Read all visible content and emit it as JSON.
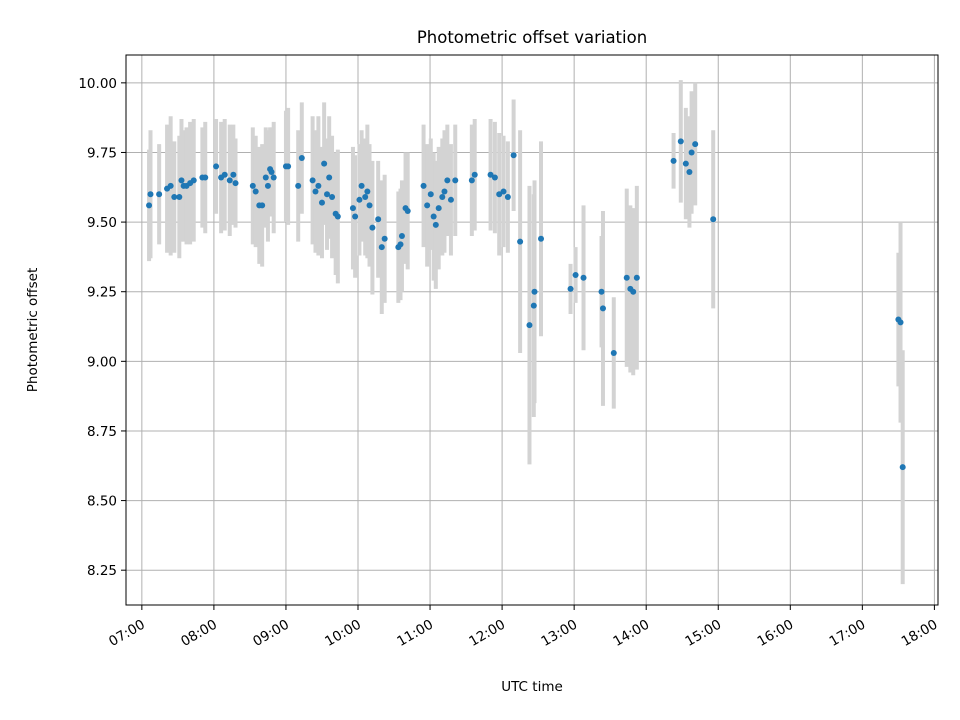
{
  "chart_data": {
    "type": "scatter",
    "title": "Photometric offset variation",
    "xlabel": "UTC time",
    "ylabel": "Photometric offset",
    "x_unit": "UTC hours",
    "xlim": [
      6.78,
      18.05
    ],
    "ylim": [
      8.125,
      10.1
    ],
    "grid": true,
    "x_ticks": [
      {
        "value": 7,
        "label": "07:00"
      },
      {
        "value": 8,
        "label": "08:00"
      },
      {
        "value": 9,
        "label": "09:00"
      },
      {
        "value": 10,
        "label": "10:00"
      },
      {
        "value": 11,
        "label": "11:00"
      },
      {
        "value": 12,
        "label": "12:00"
      },
      {
        "value": 13,
        "label": "13:00"
      },
      {
        "value": 14,
        "label": "14:00"
      },
      {
        "value": 15,
        "label": "15:00"
      },
      {
        "value": 16,
        "label": "16:00"
      },
      {
        "value": 17,
        "label": "17:00"
      },
      {
        "value": 18,
        "label": "18:00"
      }
    ],
    "y_ticks": [
      {
        "value": 8.25,
        "label": "8.25"
      },
      {
        "value": 8.5,
        "label": "8.50"
      },
      {
        "value": 8.75,
        "label": "8.75"
      },
      {
        "value": 9.0,
        "label": "9.00"
      },
      {
        "value": 9.25,
        "label": "9.25"
      },
      {
        "value": 9.5,
        "label": "9.50"
      },
      {
        "value": 9.75,
        "label": "9.75"
      },
      {
        "value": 10.0,
        "label": "10.00"
      }
    ],
    "marker_color": "#1f77b4",
    "errorbar_color": "#d3d3d3",
    "points": [
      [
        7.1,
        9.56,
        0.2
      ],
      [
        7.12,
        9.6,
        0.23
      ],
      [
        7.24,
        9.6,
        0.18
      ],
      [
        7.35,
        9.62,
        0.23
      ],
      [
        7.4,
        9.63,
        0.25
      ],
      [
        7.45,
        9.59,
        0.2
      ],
      [
        7.52,
        9.59,
        0.22
      ],
      [
        7.55,
        9.65,
        0.22
      ],
      [
        7.58,
        9.63,
        0.2
      ],
      [
        7.62,
        9.63,
        0.21
      ],
      [
        7.67,
        9.64,
        0.22
      ],
      [
        7.72,
        9.65,
        0.22
      ],
      [
        7.84,
        9.66,
        0.18
      ],
      [
        7.88,
        9.66,
        0.2
      ],
      [
        8.03,
        9.7,
        0.17
      ],
      [
        8.1,
        9.66,
        0.2
      ],
      [
        8.15,
        9.67,
        0.2
      ],
      [
        8.22,
        9.65,
        0.2
      ],
      [
        8.27,
        9.67,
        0.18
      ],
      [
        8.3,
        9.64,
        0.16
      ],
      [
        8.54,
        9.63,
        0.21
      ],
      [
        8.58,
        9.61,
        0.2
      ],
      [
        8.63,
        9.56,
        0.21
      ],
      [
        8.67,
        9.56,
        0.22
      ],
      [
        8.72,
        9.66,
        0.18
      ],
      [
        8.75,
        9.63,
        0.2
      ],
      [
        8.78,
        9.69,
        0.15
      ],
      [
        8.8,
        9.68,
        0.16
      ],
      [
        8.83,
        9.66,
        0.2
      ],
      [
        9.0,
        9.7,
        0.2
      ],
      [
        9.03,
        9.7,
        0.21
      ],
      [
        9.17,
        9.63,
        0.2
      ],
      [
        9.22,
        9.73,
        0.2
      ],
      [
        9.37,
        9.65,
        0.23
      ],
      [
        9.41,
        9.61,
        0.22
      ],
      [
        9.45,
        9.63,
        0.25
      ],
      [
        9.5,
        9.57,
        0.2
      ],
      [
        9.53,
        9.71,
        0.22
      ],
      [
        9.57,
        9.6,
        0.2
      ],
      [
        9.6,
        9.66,
        0.22
      ],
      [
        9.64,
        9.59,
        0.22
      ],
      [
        9.69,
        9.53,
        0.22
      ],
      [
        9.72,
        9.52,
        0.24
      ],
      [
        9.93,
        9.55,
        0.22
      ],
      [
        9.96,
        9.52,
        0.22
      ],
      [
        10.02,
        9.58,
        0.2
      ],
      [
        10.05,
        9.63,
        0.2
      ],
      [
        10.1,
        9.59,
        0.21
      ],
      [
        10.13,
        9.61,
        0.24
      ],
      [
        10.16,
        9.56,
        0.22
      ],
      [
        10.2,
        9.48,
        0.24
      ],
      [
        10.28,
        9.51,
        0.21
      ],
      [
        10.33,
        9.41,
        0.24
      ],
      [
        10.37,
        9.44,
        0.23
      ],
      [
        10.56,
        9.41,
        0.2
      ],
      [
        10.59,
        9.42,
        0.2
      ],
      [
        10.61,
        9.45,
        0.2
      ],
      [
        10.66,
        9.55,
        0.2
      ],
      [
        10.69,
        9.54,
        0.21
      ],
      [
        10.91,
        9.63,
        0.22
      ],
      [
        10.96,
        9.56,
        0.22
      ],
      [
        11.01,
        9.6,
        0.2
      ],
      [
        11.05,
        9.52,
        0.23
      ],
      [
        11.08,
        9.49,
        0.23
      ],
      [
        11.12,
        9.55,
        0.22
      ],
      [
        11.17,
        9.59,
        0.21
      ],
      [
        11.2,
        9.61,
        0.22
      ],
      [
        11.24,
        9.65,
        0.2
      ],
      [
        11.29,
        9.58,
        0.2
      ],
      [
        11.35,
        9.65,
        0.2
      ],
      [
        11.58,
        9.65,
        0.2
      ],
      [
        11.62,
        9.67,
        0.2
      ],
      [
        11.84,
        9.67,
        0.2
      ],
      [
        11.9,
        9.66,
        0.2
      ],
      [
        11.96,
        9.6,
        0.22
      ],
      [
        12.02,
        9.61,
        0.2
      ],
      [
        12.08,
        9.59,
        0.2
      ],
      [
        12.16,
        9.74,
        0.2
      ],
      [
        12.25,
        9.43,
        0.4
      ],
      [
        12.38,
        9.13,
        0.5
      ],
      [
        12.45,
        9.25,
        0.4
      ],
      [
        12.44,
        9.2,
        0.4
      ],
      [
        12.54,
        9.44,
        0.35
      ],
      [
        12.95,
        9.26,
        0.09
      ],
      [
        13.02,
        9.31,
        0.1
      ],
      [
        13.13,
        9.3,
        0.26
      ],
      [
        13.38,
        9.25,
        0.2
      ],
      [
        13.4,
        9.19,
        0.35
      ],
      [
        13.55,
        9.03,
        0.2
      ],
      [
        13.73,
        9.3,
        0.32
      ],
      [
        13.78,
        9.26,
        0.3
      ],
      [
        13.82,
        9.25,
        0.3
      ],
      [
        13.87,
        9.3,
        0.33
      ],
      [
        14.38,
        9.72,
        0.1
      ],
      [
        14.48,
        9.79,
        0.22
      ],
      [
        14.55,
        9.71,
        0.2
      ],
      [
        14.6,
        9.68,
        0.2
      ],
      [
        14.63,
        9.75,
        0.22
      ],
      [
        14.68,
        9.78,
        0.22
      ],
      [
        14.93,
        9.51,
        0.32
      ],
      [
        17.5,
        9.15,
        0.24
      ],
      [
        17.53,
        9.14,
        0.36
      ],
      [
        17.56,
        8.62,
        0.42
      ]
    ]
  }
}
